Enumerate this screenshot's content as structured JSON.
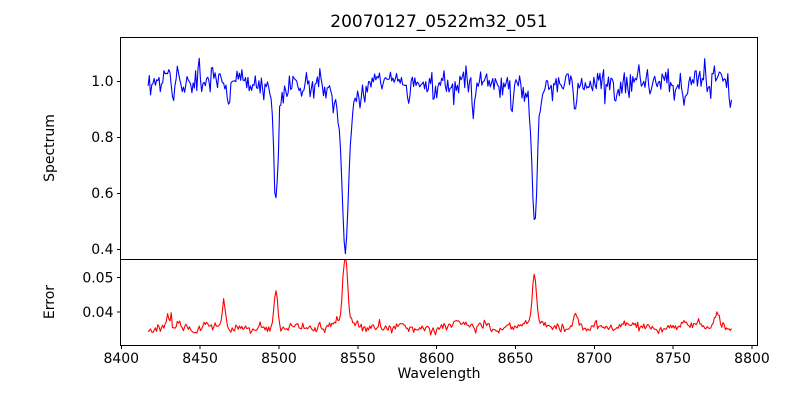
{
  "chart_data": {
    "type": "line",
    "title": "20070127_0522m32_051",
    "xlabel": "Wavelength",
    "grid": false,
    "legend": null,
    "xlim": [
      8399.5,
      8803.5
    ],
    "x_ticks": [
      8400,
      8450,
      8500,
      8550,
      8600,
      8650,
      8700,
      8750,
      8800
    ],
    "x_tick_labels": [
      "8400",
      "8450",
      "8500",
      "8550",
      "8600",
      "8650",
      "8700",
      "8750",
      "8800"
    ],
    "x_data_range": [
      8417,
      8787
    ],
    "n_points": 480,
    "frame_color": "#000000",
    "background_color": "#ffffff",
    "subplots": [
      {
        "name": "spectrum",
        "ylabel": "Spectrum",
        "line_color": "#0000ff",
        "ylim": [
          0.3635,
          1.1565
        ],
        "y_ticks": [
          0.4,
          0.6,
          0.8,
          1.0
        ],
        "y_tick_labels": [
          "0.4",
          "0.6",
          "0.8",
          "1.0"
        ],
        "continuum_level": 1.0,
        "noise_sigma": 0.024,
        "smooth_noise_sigma": 0.012,
        "absorption_lines": [
          {
            "center": 8498.0,
            "depth": 0.43,
            "core_sigma": 1.2,
            "wing_gamma": 2.5,
            "wing_frac": 0.22
          },
          {
            "center": 8542.1,
            "depth": 0.61,
            "core_sigma": 1.9,
            "wing_gamma": 5.5,
            "wing_frac": 0.3
          },
          {
            "center": 8662.1,
            "depth": 0.5,
            "core_sigma": 1.6,
            "wing_gamma": 3.5,
            "wing_frac": 0.25
          }
        ],
        "weak_lines": [
          {
            "center": 8433,
            "depth": 0.1,
            "sigma": 0.9
          },
          {
            "center": 8445,
            "depth": 0.07,
            "sigma": 0.8
          },
          {
            "center": 8468,
            "depth": 0.09,
            "sigma": 0.9
          },
          {
            "center": 8514,
            "depth": 0.06,
            "sigma": 0.8
          },
          {
            "center": 8582,
            "depth": 0.06,
            "sigma": 0.9
          },
          {
            "center": 8598,
            "depth": 0.05,
            "sigma": 0.8
          },
          {
            "center": 8611,
            "depth": 0.06,
            "sigma": 0.8
          },
          {
            "center": 8623,
            "depth": 0.08,
            "sigma": 0.9
          },
          {
            "center": 8648,
            "depth": 0.13,
            "sigma": 0.8
          },
          {
            "center": 8688,
            "depth": 0.11,
            "sigma": 0.9
          },
          {
            "center": 8713,
            "depth": 0.06,
            "sigma": 0.8
          },
          {
            "center": 8736,
            "depth": 0.06,
            "sigma": 0.8
          },
          {
            "center": 8757,
            "depth": 0.07,
            "sigma": 0.8
          },
          {
            "center": 8773,
            "depth": 0.09,
            "sigma": 0.9
          },
          {
            "center": 8786,
            "depth": 0.1,
            "sigma": 0.9
          }
        ]
      },
      {
        "name": "error",
        "ylabel": "Error",
        "line_color": "#ff0000",
        "ylim": [
          0.0303,
          0.0553
        ],
        "y_ticks": [
          0.04,
          0.05
        ],
        "y_tick_labels": [
          "0.04",
          "0.05"
        ],
        "baseline": 0.0352,
        "noise_sigma": 0.00055,
        "peaks": [
          {
            "center": 8430,
            "height": 0.0042,
            "sigma": 1.4
          },
          {
            "center": 8465,
            "height": 0.007,
            "sigma": 1.1
          },
          {
            "center": 8498,
            "height": 0.0105,
            "sigma": 1.2
          },
          {
            "center": 8542,
            "height": 0.019,
            "sigma": 1.4
          },
          {
            "center": 8542,
            "height": 0.003,
            "sigma": 5.5
          },
          {
            "center": 8614,
            "height": 0.0015,
            "sigma": 3.0
          },
          {
            "center": 8662,
            "height": 0.0135,
            "sigma": 1.3
          },
          {
            "center": 8662,
            "height": 0.0028,
            "sigma": 5.0
          },
          {
            "center": 8688,
            "height": 0.003,
            "sigma": 1.8
          },
          {
            "center": 8766,
            "height": 0.0025,
            "sigma": 1.8
          },
          {
            "center": 8778,
            "height": 0.0045,
            "sigma": 1.4
          }
        ]
      }
    ]
  }
}
